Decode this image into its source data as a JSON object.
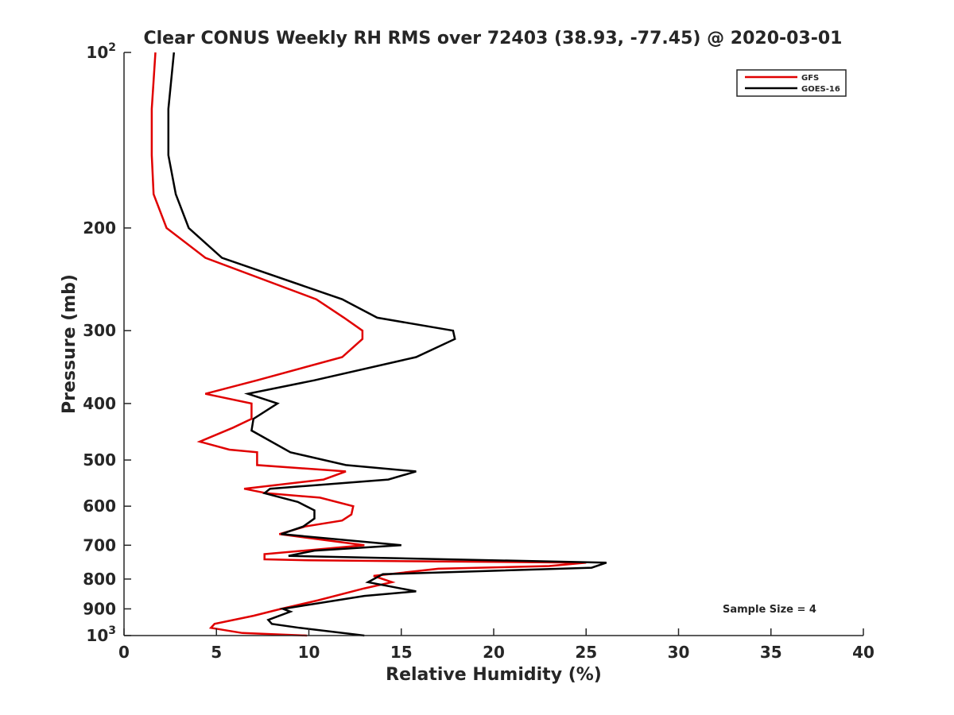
{
  "chart_data": {
    "type": "line",
    "title": "Clear CONUS Weekly RH RMS over 72403 (38.93, -77.45) @ 2020-03-01",
    "xlabel": "Relative Humidity (%)",
    "ylabel": "Pressure (mb)",
    "xlim": [
      0,
      40
    ],
    "ylim": [
      100,
      1000
    ],
    "yscale": "log",
    "y_reversed": true,
    "xticks": [
      0,
      5,
      10,
      15,
      20,
      25,
      30,
      35,
      40
    ],
    "xtick_labels": [
      "0",
      "5",
      "10",
      "15",
      "20",
      "25",
      "30",
      "35",
      "40"
    ],
    "yticks": [
      100,
      200,
      300,
      400,
      500,
      600,
      700,
      800,
      900,
      1000
    ],
    "ytick_labels": [
      {
        "base": "10",
        "exp": "2"
      },
      {
        "base": "200",
        "exp": ""
      },
      {
        "base": "300",
        "exp": ""
      },
      {
        "base": "400",
        "exp": ""
      },
      {
        "base": "500",
        "exp": ""
      },
      {
        "base": "600",
        "exp": ""
      },
      {
        "base": "700",
        "exp": ""
      },
      {
        "base": "800",
        "exp": ""
      },
      {
        "base": "900",
        "exp": ""
      },
      {
        "base": "10",
        "exp": "3"
      }
    ],
    "grid": false,
    "legend_position": "top-right",
    "annotation": "Sample Size = 4",
    "series": [
      {
        "name": "GFS",
        "color": "#e00000",
        "points": [
          [
            1.7,
            100
          ],
          [
            1.5,
            125
          ],
          [
            1.5,
            150
          ],
          [
            1.6,
            175
          ],
          [
            2.3,
            200
          ],
          [
            4.4,
            225
          ],
          [
            10.4,
            265
          ],
          [
            11.9,
            285
          ],
          [
            12.9,
            300
          ],
          [
            12.9,
            310
          ],
          [
            11.8,
            333
          ],
          [
            7.2,
            365
          ],
          [
            4.4,
            385
          ],
          [
            6.9,
            400
          ],
          [
            6.9,
            425
          ],
          [
            5.9,
            440
          ],
          [
            4.1,
            465
          ],
          [
            5.7,
            480
          ],
          [
            7.2,
            485
          ],
          [
            7.2,
            510
          ],
          [
            12.0,
            523
          ],
          [
            10.8,
            540
          ],
          [
            6.5,
            560
          ],
          [
            7.7,
            570
          ],
          [
            10.6,
            580
          ],
          [
            12.4,
            600
          ],
          [
            12.3,
            620
          ],
          [
            11.8,
            635
          ],
          [
            9.8,
            650
          ],
          [
            8.4,
            670
          ],
          [
            13.0,
            700
          ],
          [
            7.6,
            725
          ],
          [
            7.6,
            740
          ],
          [
            10.0,
            743
          ],
          [
            25.0,
            750
          ],
          [
            23.0,
            760
          ],
          [
            17.0,
            768
          ],
          [
            13.5,
            790
          ],
          [
            14.5,
            810
          ],
          [
            13.0,
            830
          ],
          [
            10.5,
            870
          ],
          [
            8.5,
            900
          ],
          [
            7.0,
            925
          ],
          [
            4.9,
            955
          ],
          [
            4.7,
            970
          ],
          [
            6.4,
            990
          ],
          [
            9.9,
            1000
          ]
        ]
      },
      {
        "name": "GOES-16",
        "color": "#000000",
        "points": [
          [
            2.7,
            100
          ],
          [
            2.4,
            125
          ],
          [
            2.4,
            150
          ],
          [
            2.8,
            175
          ],
          [
            3.5,
            200
          ],
          [
            5.3,
            225
          ],
          [
            11.8,
            265
          ],
          [
            13.7,
            285
          ],
          [
            17.8,
            300
          ],
          [
            17.9,
            310
          ],
          [
            15.8,
            333
          ],
          [
            10.3,
            365
          ],
          [
            6.7,
            385
          ],
          [
            8.3,
            400
          ],
          [
            7.0,
            425
          ],
          [
            6.9,
            445
          ],
          [
            9.0,
            485
          ],
          [
            12.0,
            510
          ],
          [
            15.8,
            523
          ],
          [
            14.3,
            540
          ],
          [
            7.9,
            560
          ],
          [
            7.6,
            570
          ],
          [
            9.4,
            590
          ],
          [
            10.3,
            610
          ],
          [
            10.3,
            630
          ],
          [
            9.7,
            650
          ],
          [
            8.5,
            670
          ],
          [
            15.0,
            700
          ],
          [
            10.3,
            715
          ],
          [
            8.9,
            730
          ],
          [
            26.1,
            750
          ],
          [
            25.3,
            765
          ],
          [
            14.0,
            785
          ],
          [
            13.2,
            810
          ],
          [
            15.8,
            840
          ],
          [
            13.0,
            855
          ],
          [
            8.6,
            900
          ],
          [
            9.0,
            910
          ],
          [
            7.8,
            940
          ],
          [
            8.0,
            955
          ],
          [
            9.5,
            970
          ],
          [
            13.0,
            1000
          ]
        ]
      }
    ]
  }
}
